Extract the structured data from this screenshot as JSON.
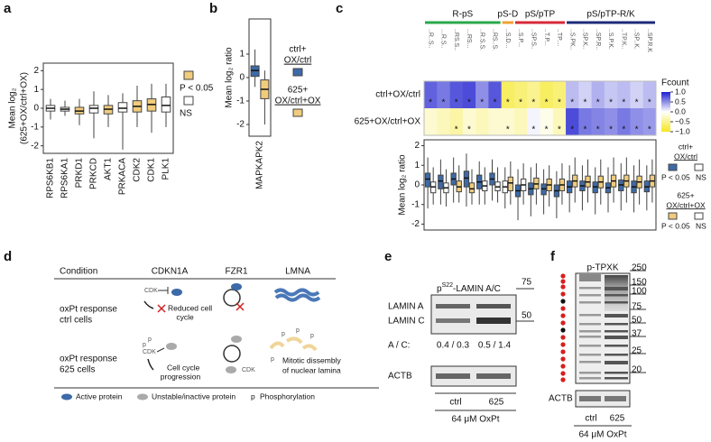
{
  "panels": [
    "a",
    "b",
    "c",
    "d",
    "e",
    "f"
  ],
  "chart_data": [
    {
      "type": "box",
      "ylabel": [
        "Mean log₂",
        "(625+OX/ctrl+OX)"
      ],
      "categories": [
        "RPS6KB1",
        "RPS6KA1",
        "PRKD1",
        "PRKCD",
        "AKT1",
        "PRKACA",
        "CDK2",
        "CDK1",
        "PLK1"
      ],
      "series": [
        {
          "boxes": [
            [
              -0.6,
              -0.15,
              0.0,
              0.15,
              0.5
            ],
            [
              -0.4,
              -0.15,
              -0.05,
              0.05,
              0.4
            ],
            [
              -0.9,
              -0.3,
              -0.15,
              0.05,
              0.5
            ],
            [
              -1.6,
              -0.25,
              0.0,
              0.15,
              0.9
            ],
            [
              -1.0,
              -0.3,
              -0.05,
              0.15,
              0.7
            ],
            [
              -2.2,
              -0.2,
              0.0,
              0.3,
              0.8
            ],
            [
              -1.0,
              -0.2,
              0.1,
              0.4,
              1.2
            ],
            [
              -1.3,
              -0.15,
              0.2,
              0.5,
              1.3
            ],
            [
              -1.0,
              -0.2,
              0.15,
              0.6,
              1.3
            ]
          ],
          "colors": [
            "#ffffff",
            "#ffffff",
            "#f0cc7c",
            "#ffffff",
            "#f0cc7c",
            "#ffffff",
            "#f0cc7c",
            "#f0cc7c",
            "#ffffff"
          ]
        }
      ],
      "ylim": [
        -2.4,
        2.4
      ],
      "yticks": [
        -2,
        -1,
        0,
        1,
        2
      ],
      "legend": [
        {
          "label": "P < 0.05",
          "color": "#f0cc7c"
        },
        {
          "label": "NS",
          "color": "#ffffff"
        }
      ]
    },
    {
      "type": "box",
      "ylabel": [
        "Mean log₂ ratio"
      ],
      "categories": [
        "MAPKAPK2"
      ],
      "series": [
        {
          "name": [
            "ctrl+",
            "OX/ctrl"
          ],
          "boxes": [
            [
              -0.4,
              0.05,
              0.3,
              0.5,
              1.2
            ]
          ],
          "colors": [
            "#3d6aa8"
          ]
        },
        {
          "name": [
            "625+",
            "OX/ctrl+OX"
          ],
          "boxes": [
            [
              -2.0,
              -0.9,
              -0.5,
              -0.1,
              0.3
            ]
          ],
          "colors": [
            "#f0cc7c"
          ]
        }
      ],
      "ylim": [
        -2.5,
        2.5
      ],
      "yticks": [
        -2,
        -1,
        0,
        1
      ]
    },
    {
      "type": "heatmap",
      "groups": [
        {
          "name": "R-pS",
          "color": "#2aa84a",
          "span": 6
        },
        {
          "name": "pS-D",
          "color": "#f0a030",
          "span": 1
        },
        {
          "name": "pS/pTP",
          "color": "#d8283a",
          "span": 4
        },
        {
          "name": "pS/pTP-R/K",
          "color": "#1c2a78",
          "span": 7
        }
      ],
      "categories": [
        "..R..S..",
        "...R.S..",
        "..RS.S..",
        "...RS...",
        "..R.S.S.",
        "..RS..S.",
        "..S.D...",
        "..S.P...",
        "..SP.S..",
        "..T.P...",
        "..TP....",
        "..S.PK..",
        "..SP.K..",
        "..SP.R..",
        "..S.P.K.",
        "..TP.K..",
        "..SP..K.",
        "..SP.R.K"
      ],
      "rows": [
        {
          "name": "ctrl+OX/ctrl",
          "values": [
            0.7,
            0.6,
            0.75,
            0.8,
            0.5,
            0.75,
            -0.7,
            -0.6,
            -0.5,
            -0.7,
            -0.6,
            0.3,
            0.2,
            0.35,
            0.25,
            0.3,
            0.2,
            0.3
          ],
          "stars": [
            "*",
            "*",
            "*",
            "*",
            "*",
            "*",
            "*",
            "*",
            "*",
            "*",
            "*",
            "*",
            "*",
            "*",
            "*",
            "*",
            "*",
            "*"
          ]
        },
        {
          "name": "625+OX/ctrl+OX",
          "values": [
            -0.2,
            -0.3,
            -0.4,
            -0.2,
            -0.3,
            -0.2,
            -0.2,
            -0.3,
            0.05,
            -0.1,
            -0.3,
            0.8,
            0.6,
            0.55,
            0.5,
            0.6,
            0.5,
            0.45
          ],
          "stars": [
            null,
            null,
            "*",
            "*",
            null,
            null,
            "*",
            null,
            "*",
            "*",
            "*",
            "*",
            "*",
            "*",
            "*",
            "*",
            "*",
            "*"
          ]
        }
      ],
      "colorbar": {
        "title": "Fcount",
        "lim": [
          -1,
          1
        ],
        "ticks": [
          {
            "value": 1,
            "label": "1.0"
          },
          {
            "value": 0.5,
            "label": "0.5"
          },
          {
            "value": 0,
            "label": "0.0"
          },
          {
            "value": -0.5,
            "label": "−0.5"
          },
          {
            "value": -1,
            "label": "−1.0"
          }
        ]
      }
    },
    {
      "type": "box",
      "ylabel": [
        "Mean log₂ ratio"
      ],
      "series": [
        {
          "name": [
            "ctrl+",
            "OX/ctrl"
          ],
          "color": "#3d6aa8",
          "boxes": [
            [
              -1.2,
              -0.1,
              0.3,
              0.6,
              1.4
            ],
            [
              -1.0,
              -0.2,
              0.2,
              0.5,
              1.3
            ],
            [
              -0.9,
              0.0,
              0.3,
              0.6,
              1.4
            ],
            [
              -1.1,
              -0.1,
              0.35,
              0.7,
              1.6
            ],
            [
              -1.0,
              -0.2,
              0.15,
              0.5,
              1.2
            ],
            [
              -0.8,
              0.0,
              0.3,
              0.6,
              1.3
            ],
            [
              -1.2,
              -0.4,
              -0.1,
              0.2,
              0.9
            ],
            [
              -1.8,
              -0.6,
              -0.3,
              0.0,
              0.8
            ],
            [
              -1.6,
              -0.5,
              -0.2,
              0.1,
              0.9
            ],
            [
              -1.5,
              -0.5,
              -0.2,
              0.05,
              0.8
            ],
            [
              -1.7,
              -0.6,
              -0.3,
              0.0,
              0.7
            ],
            [
              -1.4,
              -0.4,
              -0.1,
              0.2,
              1.0
            ],
            [
              -1.3,
              -0.3,
              -0.05,
              0.2,
              1.0
            ],
            [
              -1.5,
              -0.4,
              -0.1,
              0.15,
              0.9
            ],
            [
              -1.4,
              -0.4,
              -0.15,
              0.1,
              0.9
            ],
            [
              -1.3,
              -0.3,
              0.0,
              0.25,
              1.1
            ],
            [
              -1.4,
              -0.4,
              -0.1,
              0.2,
              1.0
            ],
            [
              -1.3,
              -0.35,
              -0.1,
              0.2,
              1.0
            ]
          ],
          "colors": [
            "#3d6aa8",
            "#3d6aa8",
            "#3d6aa8",
            "#3d6aa8",
            "#3d6aa8",
            "#3d6aa8",
            "#ffffff",
            "#3d6aa8",
            "#3d6aa8",
            "#3d6aa8",
            "#3d6aa8",
            "#3d6aa8",
            "#3d6aa8",
            "#3d6aa8",
            "#3d6aa8",
            "#3d6aa8",
            "#3d6aa8",
            "#3d6aa8"
          ]
        },
        {
          "name": [
            "625+",
            "OX/ctrl+OX"
          ],
          "color": "#f0cc7c",
          "boxes": [
            [
              -1.0,
              -0.4,
              -0.1,
              0.15,
              0.9
            ],
            [
              -1.1,
              -0.4,
              -0.15,
              0.1,
              0.8
            ],
            [
              -0.9,
              -0.35,
              -0.1,
              0.2,
              1.0
            ],
            [
              -1.0,
              -0.4,
              -0.2,
              0.1,
              0.8
            ],
            [
              -1.0,
              -0.3,
              -0.05,
              0.2,
              0.9
            ],
            [
              -0.9,
              -0.3,
              -0.1,
              0.15,
              0.9
            ],
            [
              -1.0,
              -0.3,
              0.1,
              0.4,
              1.2
            ],
            [
              -1.0,
              -0.3,
              0.0,
              0.3,
              1.1
            ],
            [
              -1.0,
              -0.2,
              0.05,
              0.35,
              1.1
            ],
            [
              -1.1,
              -0.3,
              0.0,
              0.3,
              1.0
            ],
            [
              -1.0,
              -0.3,
              0.0,
              0.3,
              1.1
            ],
            [
              -0.9,
              -0.1,
              0.2,
              0.5,
              1.4
            ],
            [
              -0.9,
              -0.1,
              0.15,
              0.45,
              1.3
            ],
            [
              -1.0,
              -0.15,
              0.15,
              0.45,
              1.3
            ],
            [
              -0.9,
              -0.1,
              0.2,
              0.5,
              1.4
            ],
            [
              -0.9,
              -0.1,
              0.2,
              0.5,
              1.4
            ],
            [
              -1.0,
              -0.15,
              0.15,
              0.45,
              1.3
            ],
            [
              -0.9,
              -0.1,
              0.2,
              0.5,
              1.3
            ]
          ],
          "colors": [
            "#ffffff",
            "#ffffff",
            "#f0cc7c",
            "#f0cc7c",
            "#ffffff",
            "#ffffff",
            "#f0cc7c",
            "#ffffff",
            "#f0cc7c",
            "#f0cc7c",
            "#f0cc7c",
            "#f0cc7c",
            "#f0cc7c",
            "#f0cc7c",
            "#f0cc7c",
            "#f0cc7c",
            "#f0cc7c",
            "#f0cc7c"
          ]
        }
      ],
      "ylim": [
        -2.3,
        2.3
      ],
      "yticks": [
        -2,
        -1,
        0,
        1,
        2
      ],
      "legend_labels": [
        "P < 0.05",
        "NS"
      ]
    }
  ],
  "diagram": {
    "headers": [
      "Condition",
      "CDKN1A",
      "FZR1",
      "LMNA"
    ],
    "rows": [
      {
        "condition": [
          "oxPt response",
          "ctrl cells"
        ],
        "note": [
          "Reduced cell",
          "cycle"
        ]
      },
      {
        "condition": [
          "oxPt response",
          "625 cells"
        ],
        "note": [
          "Cell cycle",
          "progression"
        ],
        "lamina": [
          "Mitotic dissembly",
          "of nuclear lamina"
        ]
      }
    ],
    "cdk": "CDK",
    "phospho": "p",
    "legend": [
      "Active protein",
      "Unstable/inactive protein",
      "p",
      "Phosphorylation"
    ]
  },
  "blot_e": {
    "title": [
      "p",
      "S22",
      "-LAMIN A/C"
    ],
    "bands": [
      "LAMIN A",
      "LAMIN C"
    ],
    "markers": [
      75,
      50
    ],
    "ratio_label": "A / C:",
    "ratios": [
      "0.4 / 0.3",
      "0.5 / 1.4"
    ],
    "loading": "ACTB",
    "lanes": [
      "ctrl",
      "625"
    ],
    "treatment": "64 μM OxPt"
  },
  "blot_f": {
    "title": "p-TPXK",
    "markers": [
      250,
      150,
      100,
      75,
      50,
      37,
      25,
      20
    ],
    "loading": "ACTB",
    "lanes": [
      "ctrl",
      "625"
    ],
    "treatment": "64 μM OxPt"
  }
}
